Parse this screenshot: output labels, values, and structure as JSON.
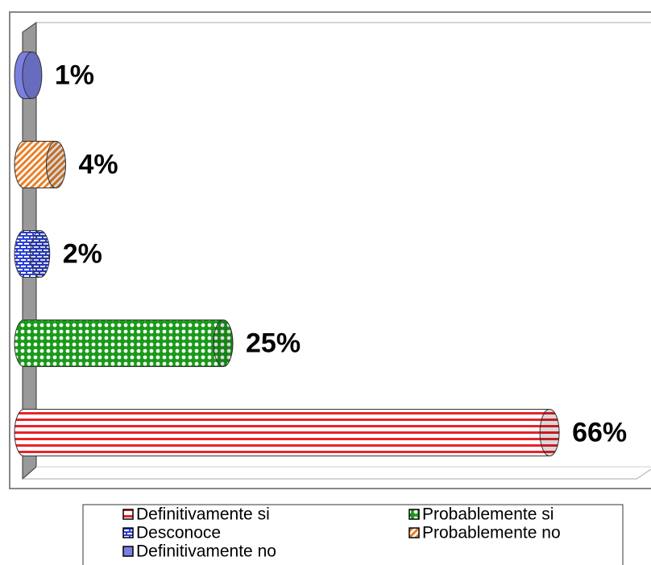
{
  "chart_data": {
    "type": "bar",
    "orientation": "horizontal",
    "categories": [
      "Definitivamente si",
      "Probablemente si",
      "Desconoce",
      "Probablemente no",
      "Definitivamente no"
    ],
    "values": [
      66,
      25,
      2,
      4,
      1
    ],
    "value_labels": [
      "66%",
      "25%",
      "2%",
      "4%",
      "1%"
    ],
    "colors": [
      "#e8232a",
      "#1a9a1a",
      "#2b3fd6",
      "#e8802a",
      "#7b7fe0"
    ],
    "xlim": [
      0,
      75
    ]
  }
}
